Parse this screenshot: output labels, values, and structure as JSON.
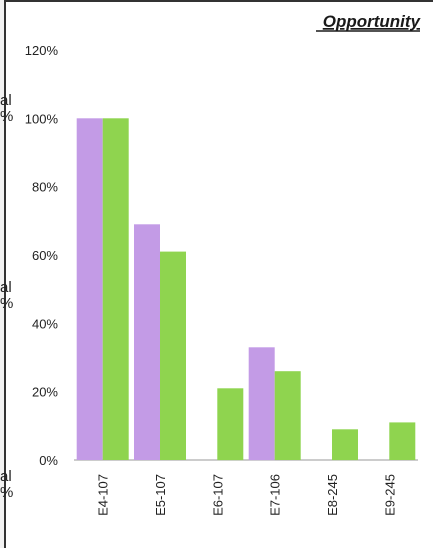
{
  "header": {
    "title_cut": "Opportunity"
  },
  "left_cutoff": {
    "fragments": [
      "al",
      "%",
      "al",
      "%",
      "al",
      "%"
    ]
  },
  "chart_data": {
    "type": "bar",
    "title": "Opportunity",
    "xlabel": "",
    "ylabel": "",
    "categories": [
      "E4-107",
      "E5-107",
      "E6-107",
      "E7-106",
      "E8-245",
      "E9-245"
    ],
    "series": [
      {
        "values": [
          100,
          69,
          0,
          33,
          0,
          0
        ]
      },
      {
        "values": [
          100,
          61,
          21,
          26,
          9,
          11
        ]
      }
    ],
    "ylim": [
      0,
      120
    ],
    "yticks": [
      "0%",
      "20%",
      "40%",
      "60%",
      "80%",
      "100%",
      "120%"
    ],
    "colors": [
      "#c39be6",
      "#8fd44f"
    ],
    "grid": false,
    "legend": "none"
  }
}
